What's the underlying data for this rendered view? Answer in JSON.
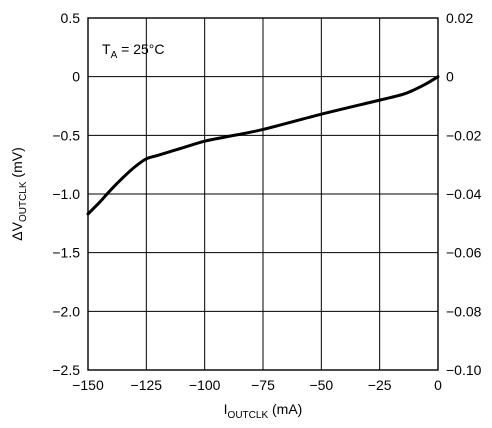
{
  "chart_data": {
    "type": "line",
    "xlabel": {
      "main": "I",
      "sub": "OUTCLK",
      "unit": " (mA)"
    },
    "ylabel_left": {
      "prefix": "ΔV",
      "sub": "OUTCLK",
      "unit": " (mV)"
    },
    "annotation": {
      "main": "T",
      "sub": "A",
      "rest": " = 25°C"
    },
    "xlim": [
      -150,
      0
    ],
    "ylim_left": [
      -2.5,
      0.5
    ],
    "ylim_right": [
      -0.1,
      0.02
    ],
    "x_ticks": [
      "−150",
      "−125",
      "−100",
      "−75",
      "−50",
      "−25",
      "0"
    ],
    "x_tick_values": [
      -150,
      -125,
      -100,
      -75,
      -50,
      -25,
      0
    ],
    "y_left_ticks": [
      "0.5",
      "0",
      "−0.5",
      "−1.0",
      "−1.5",
      "−2.0",
      "−2.5"
    ],
    "y_left_tick_values": [
      0.5,
      0,
      -0.5,
      -1.0,
      -1.5,
      -2.0,
      -2.5
    ],
    "y_right_ticks": [
      "0.02",
      "0",
      "−0.02",
      "−0.04",
      "−0.06",
      "−0.08",
      "−0.10"
    ],
    "y_right_tick_values": [
      0.02,
      0,
      -0.02,
      -0.04,
      -0.06,
      -0.08,
      -0.1
    ],
    "grid": true,
    "series": [
      {
        "x": [
          -150,
          -145,
          -140,
          -135,
          -130,
          -125,
          -120,
          -110,
          -100,
          -90,
          -75,
          -50,
          -25,
          -15,
          -10,
          -5,
          0
        ],
        "y": [
          -1.17,
          -1.07,
          -0.96,
          -0.86,
          -0.77,
          -0.7,
          -0.67,
          -0.61,
          -0.55,
          -0.51,
          -0.45,
          -0.32,
          -0.2,
          -0.15,
          -0.11,
          -0.06,
          0.0
        ]
      }
    ]
  }
}
